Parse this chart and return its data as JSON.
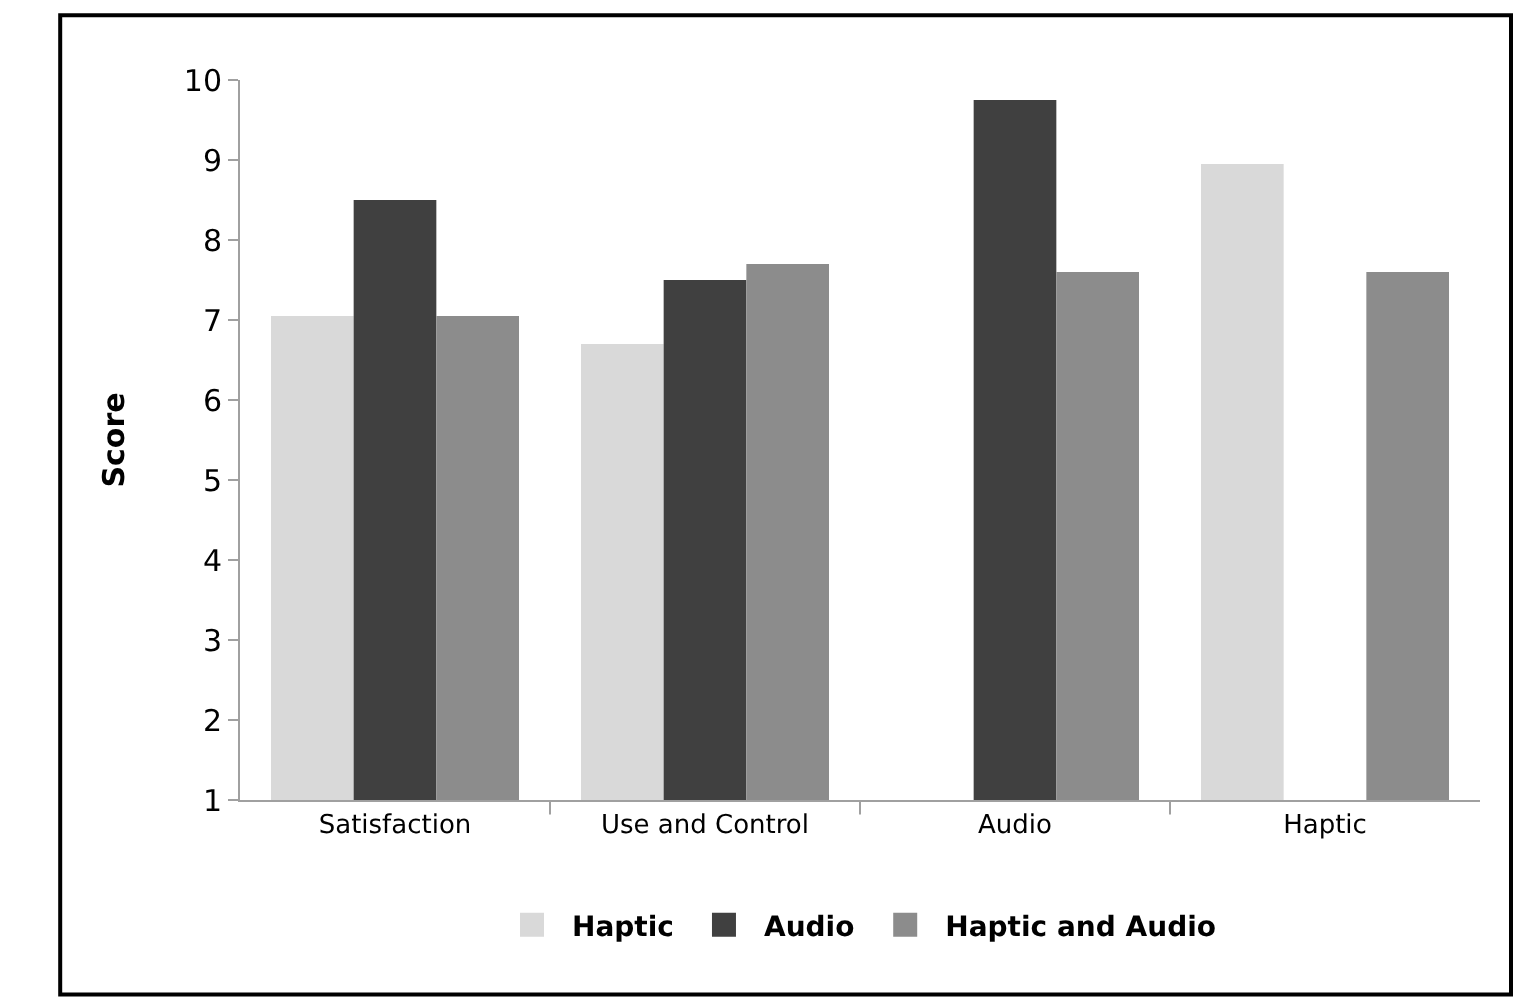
{
  "chart_data": {
    "type": "bar",
    "ylabel": "Score",
    "categories": [
      "Satisfaction",
      "Use and Control",
      "Audio",
      "Haptic"
    ],
    "series": [
      {
        "name": "Haptic",
        "color": "#d9d9d9",
        "values": [
          7.05,
          6.7,
          null,
          8.95
        ]
      },
      {
        "name": "Audio",
        "color": "#404040",
        "values": [
          8.5,
          7.5,
          9.75,
          null
        ]
      },
      {
        "name": "Haptic and Audio",
        "color": "#8c8c8c",
        "values": [
          7.05,
          7.7,
          7.6,
          7.6
        ]
      }
    ],
    "ylim": [
      1,
      10
    ],
    "yticks": [
      1,
      2,
      3,
      4,
      5,
      6,
      7,
      8,
      9,
      10
    ],
    "legend": "bottom"
  }
}
